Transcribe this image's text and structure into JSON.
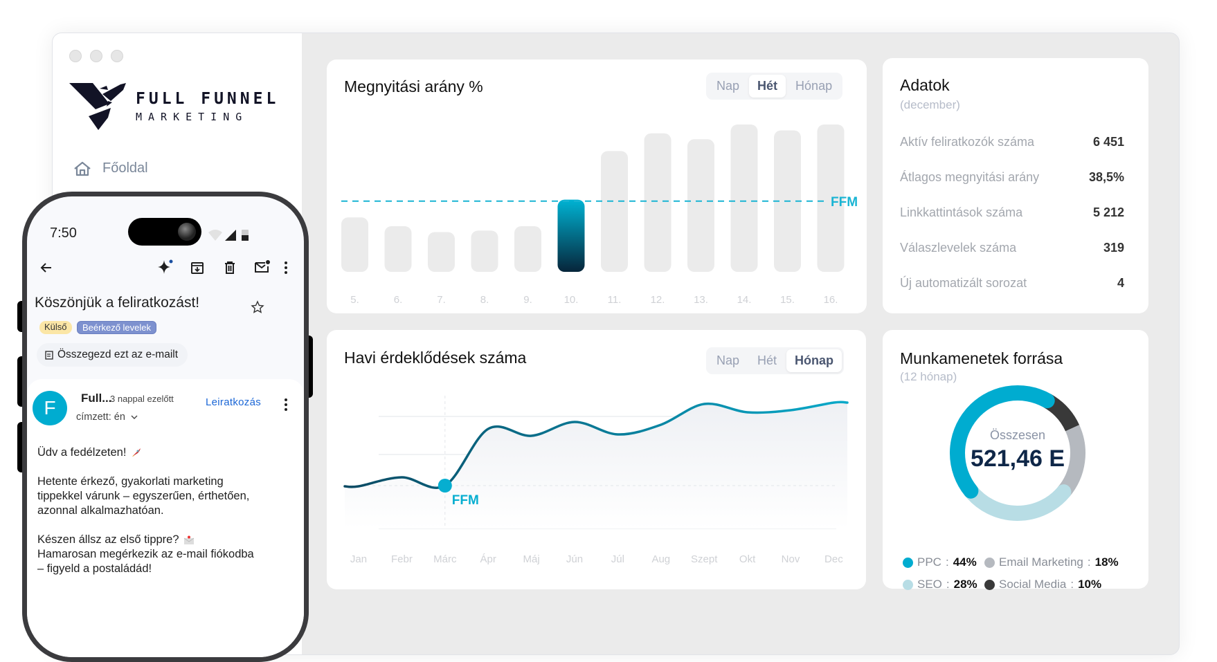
{
  "sidebar": {
    "logo_line1": "FULL FUNNEL",
    "logo_line2": "MARKETING",
    "nav": [
      {
        "label": "Főoldal",
        "icon": "home-icon"
      }
    ]
  },
  "phone": {
    "time": "7:50",
    "subject": "Köszönjük a feliratkozást!",
    "labels": [
      "Külső",
      "Beérkező levelek"
    ],
    "summarize": "Összegezd ezt az e-mailt",
    "sender_initial": "F",
    "sender": "Full...",
    "time_ago": "3 nappal ezelőtt",
    "unsubscribe": "Leiratkozás",
    "recipient": "címzett: én",
    "body": [
      "Üdv a fedélzeten!",
      "Hetente érkező, gyakorlati marketing",
      "tippekkel várunk – egyszerűen, érthetően,",
      "azonnal alkalmazhatóan.",
      "Készen állsz az első tippre?",
      "Hamarosan megérkezik az e-mail fiókodba",
      "– figyeld a postaládád!"
    ]
  },
  "open_rate": {
    "title": "Megnyitási arány %",
    "toggle": [
      "Nap",
      "Hét",
      "Hónap"
    ],
    "active": "Hét",
    "ref_label": "FFM"
  },
  "inquiries": {
    "title": "Havi érdeklődések száma",
    "toggle": [
      "Nap",
      "Hét",
      "Hónap"
    ],
    "active": "Hónap",
    "marker_label": "FFM"
  },
  "stats": {
    "title": "Adatok",
    "subtitle": "(december)",
    "rows": [
      {
        "label": "Aktív feliratkozók száma",
        "value": "6 451"
      },
      {
        "label": "Átlagos megnyitási arány",
        "value": "38,5%"
      },
      {
        "label": "Linkkattintások száma",
        "value": "5 212"
      },
      {
        "label": "Válaszlevelek száma",
        "value": "319"
      },
      {
        "label": "Új automatizált sorozat",
        "value": "4"
      }
    ]
  },
  "sessions": {
    "title": "Munkamenetek forrása",
    "subtitle": "(12 hónap)",
    "center_label": "Összesen",
    "center_value": "521,46 E"
  },
  "chart_data": [
    {
      "type": "bar",
      "title": "Megnyitási arány %",
      "categories": [
        "5.",
        "6.",
        "7.",
        "8.",
        "9.",
        "10.",
        "11.",
        "12.",
        "13.",
        "14.",
        "15.",
        "16."
      ],
      "values": [
        37,
        31,
        27,
        28,
        31,
        49,
        82,
        94,
        90,
        100,
        96,
        100
      ],
      "highlight_index": 5,
      "reference_line": {
        "label": "FFM",
        "value": 48
      },
      "ylim": [
        0,
        100
      ],
      "grid": false,
      "colors": {
        "bar": "#ebebeb",
        "highlight_top": "#00b3d3",
        "highlight_bottom": "#06253a",
        "ref": "#19b4d3"
      }
    },
    {
      "type": "line",
      "title": "Havi érdeklődések száma",
      "categories": [
        "Jan",
        "Febr",
        "Márc",
        "Ápr",
        "Máj",
        "Jún",
        "Júl",
        "Aug",
        "Szept",
        "Okt",
        "Nov",
        "Dec"
      ],
      "values": [
        61,
        74,
        62,
        144,
        134,
        154,
        136,
        150,
        180,
        168,
        171,
        182
      ],
      "marker": {
        "category": "Márc",
        "label": "FFM"
      },
      "ylim": [
        0,
        200
      ],
      "grid": true,
      "colors": {
        "line_start": "#0b4a63",
        "line_end": "#08a9c9",
        "marker": "#06aed0"
      }
    },
    {
      "type": "pie",
      "title": "Munkamenetek forrása",
      "subtitle": "(12 hónap)",
      "total_label": "Összesen",
      "total": "521,46 E",
      "slices": [
        {
          "name": "PPC",
          "value": 44,
          "label": "44%",
          "color": "#00acd0"
        },
        {
          "name": "Social Media",
          "value": 10,
          "label": "10%",
          "color": "#393939"
        },
        {
          "name": "Email Marketing",
          "value": 18,
          "label": "18%",
          "color": "#b5b9bf"
        },
        {
          "name": "SEO",
          "value": 28,
          "label": "28%",
          "color": "#b8dde5"
        }
      ],
      "legend_order": [
        0,
        2,
        3,
        1
      ],
      "legend": "bottom"
    }
  ]
}
